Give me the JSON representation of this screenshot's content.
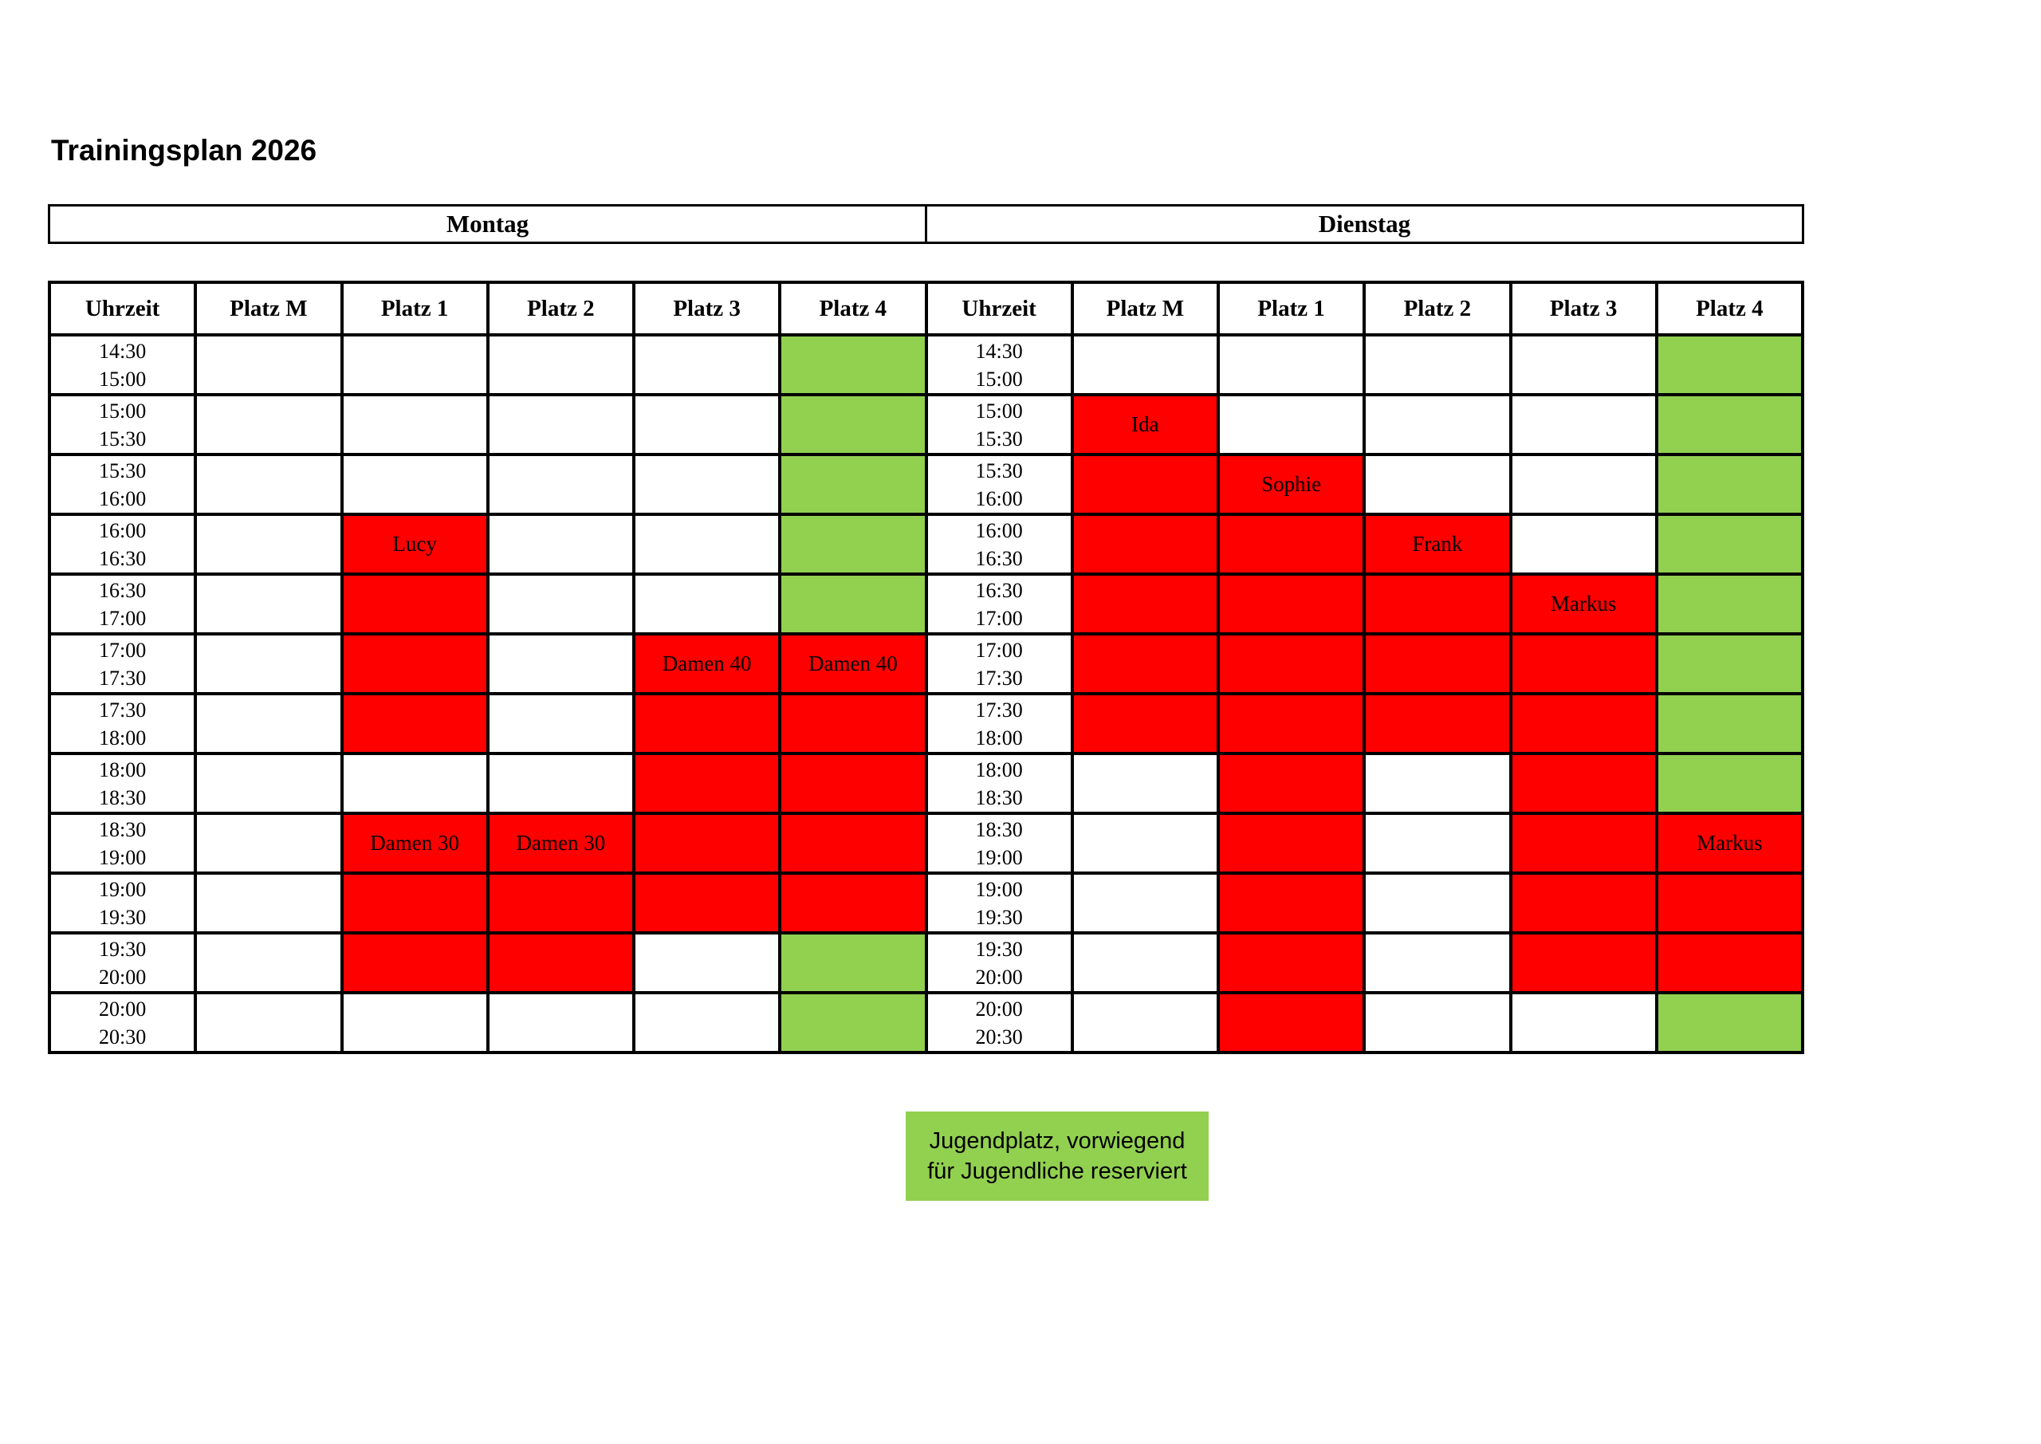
{
  "title": "Trainingsplan 2026",
  "day_headers": [
    "Montag",
    "Dienstag"
  ],
  "column_headers": [
    "Uhrzeit",
    "Platz M",
    "Platz 1",
    "Platz 2",
    "Platz 3",
    "Platz 4"
  ],
  "colors": {
    "booked": "#FF0000",
    "youth": "#92D050",
    "border": "#000000",
    "background": "#FFFFFF"
  },
  "legend": {
    "lines": [
      "Jugendplatz, vorwiegend",
      "für Jugendliche reserviert"
    ],
    "color": "#92D050"
  },
  "rows": [
    {
      "time": [
        "14:30",
        "15:00"
      ],
      "montag": [
        "free",
        "free",
        "free",
        "free",
        "youth"
      ],
      "dienstag": [
        "free",
        "free",
        "free",
        "free",
        "youth"
      ]
    },
    {
      "time": [
        "15:00",
        "15:30"
      ],
      "montag": [
        "free",
        "free",
        "free",
        "free",
        "youth"
      ],
      "dienstag": [
        {
          "state": "booked",
          "label": "Ida"
        },
        "free",
        "free",
        "free",
        "youth"
      ]
    },
    {
      "time": [
        "15:30",
        "16:00"
      ],
      "montag": [
        "free",
        "free",
        "free",
        "free",
        "youth"
      ],
      "dienstag": [
        "booked",
        {
          "state": "booked",
          "label": "Sophie"
        },
        "free",
        "free",
        "youth"
      ]
    },
    {
      "time": [
        "16:00",
        "16:30"
      ],
      "montag": [
        "free",
        {
          "state": "booked",
          "label": "Lucy"
        },
        "free",
        "free",
        "youth"
      ],
      "dienstag": [
        "booked",
        "booked",
        {
          "state": "booked",
          "label": "Frank"
        },
        "free",
        "youth"
      ]
    },
    {
      "time": [
        "16:30",
        "17:00"
      ],
      "montag": [
        "free",
        "booked",
        "free",
        "free",
        "youth"
      ],
      "dienstag": [
        "booked",
        "booked",
        "booked",
        {
          "state": "booked",
          "label": "Markus"
        },
        "youth"
      ]
    },
    {
      "time": [
        "17:00",
        "17:30"
      ],
      "montag": [
        "free",
        "booked",
        "free",
        {
          "state": "booked",
          "label": "Damen 40"
        },
        {
          "state": "booked",
          "label": "Damen 40"
        }
      ],
      "dienstag": [
        "booked",
        "booked",
        "booked",
        "booked",
        "youth"
      ]
    },
    {
      "time": [
        "17:30",
        "18:00"
      ],
      "montag": [
        "free",
        "booked",
        "free",
        "booked",
        "booked"
      ],
      "dienstag": [
        "booked",
        "booked",
        "booked",
        "booked",
        "youth"
      ]
    },
    {
      "time": [
        "18:00",
        "18:30"
      ],
      "montag": [
        "free",
        "free",
        "free",
        "booked",
        "booked"
      ],
      "dienstag": [
        "free",
        "booked",
        "free",
        "booked",
        "youth"
      ]
    },
    {
      "time": [
        "18:30",
        "19:00"
      ],
      "montag": [
        "free",
        {
          "state": "booked",
          "label": "Damen 30"
        },
        {
          "state": "booked",
          "label": "Damen 30"
        },
        "booked",
        "booked"
      ],
      "dienstag": [
        "free",
        "booked",
        "free",
        "booked",
        {
          "state": "booked",
          "label": "Markus"
        }
      ]
    },
    {
      "time": [
        "19:00",
        "19:30"
      ],
      "montag": [
        "free",
        "booked",
        "booked",
        "booked",
        "booked"
      ],
      "dienstag": [
        "free",
        "booked",
        "free",
        "booked",
        "booked"
      ]
    },
    {
      "time": [
        "19:30",
        "20:00"
      ],
      "montag": [
        "free",
        "booked",
        "booked",
        "free",
        "youth"
      ],
      "dienstag": [
        "free",
        "booked",
        "free",
        "booked",
        "booked"
      ]
    },
    {
      "time": [
        "20:00",
        "20:30"
      ],
      "montag": [
        "free",
        "free",
        "free",
        "free",
        "youth"
      ],
      "dienstag": [
        "free",
        "booked",
        "free",
        "free",
        "youth"
      ]
    }
  ]
}
